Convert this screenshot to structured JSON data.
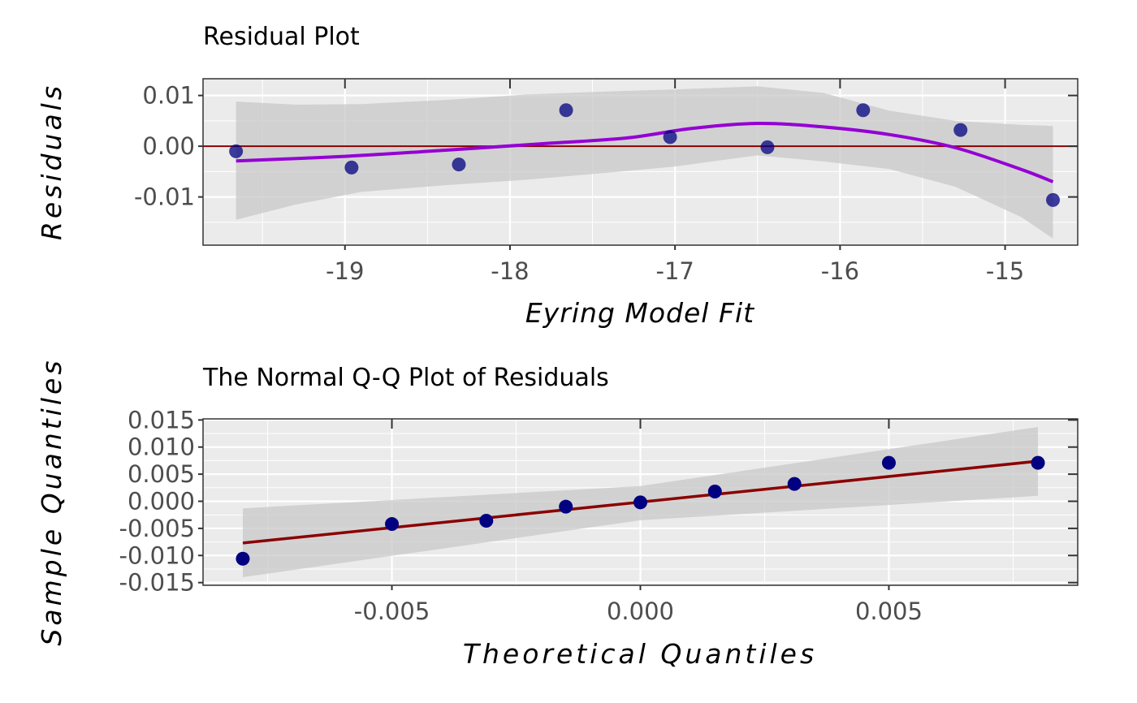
{
  "chart_data": [
    {
      "type": "scatter",
      "title": "Residual Plot",
      "xlabel": "Eyring Model Fit",
      "ylabel": "Residuals",
      "xlim": [
        -19.86,
        -14.56
      ],
      "ylim": [
        -0.0195,
        0.0133
      ],
      "xticks": [
        -19,
        -18,
        -17,
        -16,
        -15
      ],
      "xtick_labels": [
        "-19",
        "-18",
        "-17",
        "-16",
        "-15"
      ],
      "yticks": [
        -0.01,
        0.0,
        0.01
      ],
      "ytick_labels": [
        "-0.01",
        "0.00",
        "0.01"
      ],
      "grid": true,
      "points": {
        "x": [
          -19.66,
          -18.96,
          -18.31,
          -17.66,
          -17.03,
          -16.44,
          -15.86,
          -15.27,
          -14.71
        ],
        "y": [
          -0.001,
          -0.0042,
          -0.0036,
          0.0071,
          0.0018,
          -0.0002,
          0.0071,
          0.0032,
          -0.0106
        ]
      },
      "reference_line": {
        "y": 0.0
      },
      "smooth_curve": {
        "x": [
          -19.66,
          -19.0,
          -18.4,
          -17.8,
          -17.3,
          -16.9,
          -16.5,
          -16.1,
          -15.7,
          -15.3,
          -14.9,
          -14.71
        ],
        "y": [
          -0.0029,
          -0.002,
          -0.0008,
          0.0005,
          0.0016,
          0.0035,
          0.0045,
          0.0038,
          0.0023,
          -0.0003,
          -0.0046,
          -0.007
        ]
      },
      "confidence_band": {
        "x": [
          -19.66,
          -19.3,
          -18.9,
          -18.4,
          -17.9,
          -17.4,
          -17.0,
          -16.5,
          -16.1,
          -15.7,
          -15.3,
          -14.9,
          -14.71
        ],
        "lower": [
          -0.0145,
          -0.0115,
          -0.009,
          -0.0077,
          -0.0066,
          -0.0052,
          -0.004,
          -0.0018,
          -0.003,
          -0.0045,
          -0.008,
          -0.014,
          -0.0182
        ],
        "upper": [
          0.0088,
          0.0082,
          0.0083,
          0.0091,
          0.0102,
          0.0108,
          0.0112,
          0.0118,
          0.0105,
          0.007,
          0.005,
          0.0042,
          0.004
        ]
      },
      "colors": {
        "points": "#000080",
        "smooth": "#9400d3",
        "reference": "#8b0000",
        "band": "#c8c8c8"
      }
    },
    {
      "type": "scatter",
      "title": "The Normal Q-Q Plot of Residuals",
      "xlabel": "Theoretical Quantiles",
      "ylabel": "Sample Quantiles",
      "xlim": [
        -0.0088,
        0.0088
      ],
      "ylim": [
        -0.0155,
        0.0152
      ],
      "xticks": [
        -0.005,
        0.0,
        0.005
      ],
      "xtick_labels": [
        "-0.005",
        "0.000",
        "0.005"
      ],
      "yticks": [
        -0.015,
        -0.01,
        -0.005,
        0.0,
        0.005,
        0.01,
        0.015
      ],
      "ytick_labels": [
        "-0.015",
        "-0.010",
        "-0.005",
        "0.000",
        "0.005",
        "0.010",
        "0.015"
      ],
      "grid": true,
      "points": {
        "x": [
          -0.008,
          -0.005,
          -0.0031,
          -0.0015,
          0.0,
          0.0015,
          0.0031,
          0.005,
          0.008
        ],
        "y": [
          -0.0106,
          -0.0042,
          -0.0036,
          -0.001,
          -0.0002,
          0.0018,
          0.0032,
          0.0071,
          0.0071
        ]
      },
      "fit_line": {
        "x": [
          -0.008,
          0.008
        ],
        "y": [
          -0.0077,
          0.0074
        ]
      },
      "confidence_band": {
        "x": [
          -0.008,
          0.0,
          0.008
        ],
        "lower": [
          -0.014,
          -0.0035,
          0.001
        ],
        "upper": [
          -0.0013,
          0.0028,
          0.0137
        ]
      },
      "colors": {
        "points": "#000080",
        "fit": "#8b0000",
        "band": "#c8c8c8"
      }
    }
  ]
}
